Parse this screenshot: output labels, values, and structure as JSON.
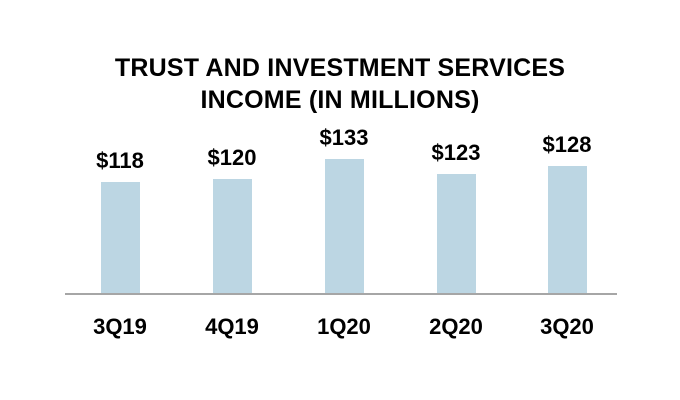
{
  "chart_data": {
    "type": "bar",
    "title": "TRUST AND INVESTMENT SERVICES INCOME (IN MILLIONS)",
    "title_lines": [
      "TRUST AND INVESTMENT SERVICES",
      "INCOME (IN MILLIONS)"
    ],
    "categories": [
      "3Q19",
      "4Q19",
      "1Q20",
      "2Q20",
      "3Q20"
    ],
    "values": [
      118,
      120,
      133,
      123,
      128
    ],
    "value_labels": [
      "$118",
      "$120",
      "$133",
      "$123",
      "$128"
    ],
    "xlabel": "",
    "ylabel": "",
    "ylim": [
      45,
      140
    ],
    "grid": false,
    "legend": "none",
    "colors": {
      "bar_fill": "#BCD6E3",
      "axis_line": "#A6A6A6",
      "text": "#000000",
      "background": "#FFFFFF"
    }
  }
}
